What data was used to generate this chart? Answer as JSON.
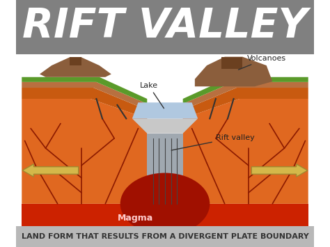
{
  "title": "RIFT VALLEY",
  "subtitle": "LAND FORM THAT RESULTS FROM A DIVERGENT PLATE BOUNDARY",
  "title_bg": "#808080",
  "subtitle_bg": "#b8b8b8",
  "bg_color": "#ffffff",
  "magma_color": "#cc2200",
  "magma_text_color": "#ffcccc",
  "orange_rock_color": "#e06820",
  "dark_orange_color": "#c85a10",
  "grass_color": "#5a9a2a",
  "soil_color": "#b87040",
  "brown_color": "#8B5E3C",
  "dark_brown_color": "#6b4020",
  "lake_color": "#b0c8e0",
  "rift_face_color": "#a0a8b0",
  "rift_top_color": "#c8c8c8",
  "crack_color": "#8B1A00",
  "magma_blob_color": "#a01000",
  "arrow_color": "#d4b84a",
  "arrow_edge_color": "#a08830",
  "label_color": "#222222",
  "fault_color": "#333333",
  "label_lake": "Lake",
  "label_volcanoes": "Volcanoes",
  "label_rift": "Rift valley",
  "label_magma": "Magma",
  "title_fontsize": 42,
  "subtitle_fontsize": 8
}
